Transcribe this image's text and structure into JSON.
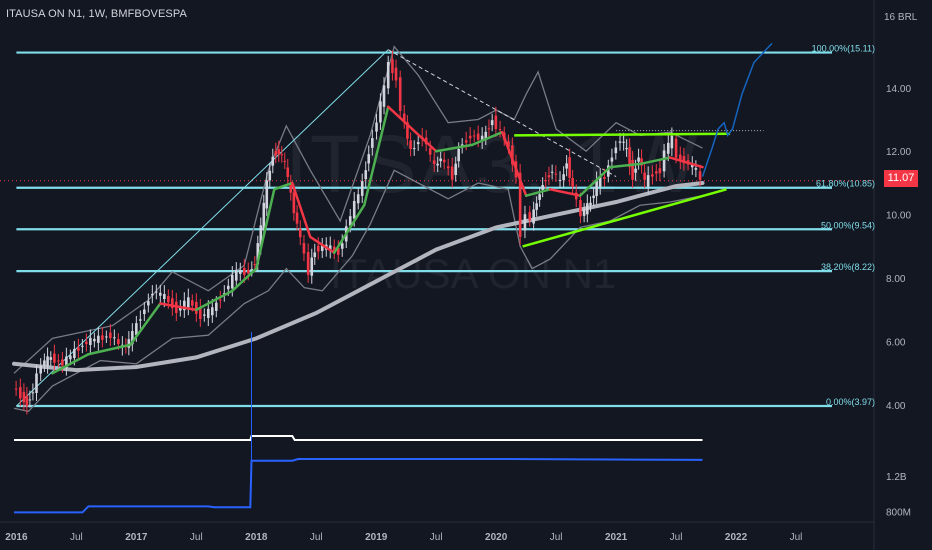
{
  "title": "ITAUSA ON N1, 1W, BMFBOVESPA",
  "watermark": {
    "ticker": "ITSA3, 1W",
    "name": "ITAUSA ON N1"
  },
  "currency": "16 BRL",
  "last_price": "11.07",
  "colors": {
    "background": "#131722",
    "up_candle": "#d1d4dc",
    "down_candle": "#f23645",
    "fib_levels": "#80deea",
    "triangle_lines": "#76ff03",
    "ma_200": "#b2b5be",
    "projection": "#1565c0",
    "last_price": "#f23645"
  },
  "chart_data": {
    "type": "line",
    "x_unit": "year (decimal)",
    "y_unit": "BRL",
    "x_range": [
      2015.98,
      2022.85
    ],
    "y_range": [
      3.15,
      16.2
    ],
    "price_axis_ticks": [
      "16 BRL",
      "14.00",
      "12.00",
      "10.00",
      "8.00",
      "6.00",
      "4.00"
    ],
    "volume_axis_ticks": [
      "1.2B",
      "800M"
    ],
    "time_axis_ticks": [
      {
        "label": "2016",
        "x": 2016.0
      },
      {
        "label": "Jul",
        "x": 2016.5
      },
      {
        "label": "2017",
        "x": 2017.0
      },
      {
        "label": "Jul",
        "x": 2017.5
      },
      {
        "label": "2018",
        "x": 2018.0
      },
      {
        "label": "Jul",
        "x": 2018.5
      },
      {
        "label": "2019",
        "x": 2019.0
      },
      {
        "label": "Jul",
        "x": 2019.5
      },
      {
        "label": "2020",
        "x": 2020.0
      },
      {
        "label": "Jul",
        "x": 2020.5
      },
      {
        "label": "2021",
        "x": 2021.0
      },
      {
        "label": "Jul",
        "x": 2021.5
      },
      {
        "label": "2022",
        "x": 2022.0
      },
      {
        "label": "Jul",
        "x": 2022.5
      }
    ],
    "fib_levels": [
      {
        "label": "100.00%(15.11)",
        "value": 15.11
      },
      {
        "label": "61.80%(10.85)",
        "value": 10.85
      },
      {
        "label": "50.00%(9.54)",
        "value": 9.54
      },
      {
        "label": "38.20%(8.22)",
        "value": 8.22
      },
      {
        "label": "0.00%(3.97)",
        "value": 3.97
      }
    ],
    "fib_x_start": 2016.0,
    "fib_x_end": 2022.8,
    "price_series": [
      [
        2015.98,
        4.6
      ],
      [
        2016.05,
        4.3
      ],
      [
        2016.1,
        4.05
      ],
      [
        2016.15,
        4.5
      ],
      [
        2016.22,
        5.3
      ],
      [
        2016.3,
        5.5
      ],
      [
        2016.4,
        5.3
      ],
      [
        2016.5,
        5.7
      ],
      [
        2016.6,
        6.0
      ],
      [
        2016.7,
        6.1
      ],
      [
        2016.8,
        6.2
      ],
      [
        2016.9,
        5.8
      ],
      [
        2016.95,
        6.0
      ],
      [
        2017.05,
        6.8
      ],
      [
        2017.15,
        7.6
      ],
      [
        2017.25,
        7.4
      ],
      [
        2017.35,
        7.0
      ],
      [
        2017.45,
        7.3
      ],
      [
        2017.55,
        6.8
      ],
      [
        2017.65,
        7.0
      ],
      [
        2017.75,
        7.6
      ],
      [
        2017.85,
        8.2
      ],
      [
        2017.95,
        8.2
      ],
      [
        2018.0,
        8.5
      ],
      [
        2018.05,
        9.6
      ],
      [
        2018.1,
        11.0
      ],
      [
        2018.15,
        11.9
      ],
      [
        2018.2,
        12.0
      ],
      [
        2018.25,
        11.6
      ],
      [
        2018.3,
        10.6
      ],
      [
        2018.38,
        9.2
      ],
      [
        2018.45,
        8.2
      ],
      [
        2018.5,
        8.9
      ],
      [
        2018.6,
        9.0
      ],
      [
        2018.7,
        8.8
      ],
      [
        2018.8,
        10.0
      ],
      [
        2018.9,
        11.0
      ],
      [
        2018.95,
        12.0
      ],
      [
        2019.02,
        13.0
      ],
      [
        2019.08,
        14.0
      ],
      [
        2019.12,
        14.8
      ],
      [
        2019.18,
        14.3
      ],
      [
        2019.22,
        13.3
      ],
      [
        2019.3,
        12.0
      ],
      [
        2019.4,
        12.5
      ],
      [
        2019.5,
        11.5
      ],
      [
        2019.55,
        11.8
      ],
      [
        2019.65,
        11.2
      ],
      [
        2019.7,
        12.1
      ],
      [
        2019.8,
        12.5
      ],
      [
        2019.9,
        12.4
      ],
      [
        2019.98,
        13.0
      ],
      [
        2020.05,
        12.6
      ],
      [
        2020.12,
        12.1
      ],
      [
        2020.18,
        11.2
      ],
      [
        2020.22,
        9.4
      ],
      [
        2020.26,
        10.1
      ],
      [
        2020.3,
        9.8
      ],
      [
        2020.35,
        10.4
      ],
      [
        2020.4,
        11.0
      ],
      [
        2020.48,
        11.4
      ],
      [
        2020.55,
        11.0
      ],
      [
        2020.6,
        11.7
      ],
      [
        2020.65,
        10.8
      ],
      [
        2020.72,
        10.0
      ],
      [
        2020.8,
        10.4
      ],
      [
        2020.85,
        11.0
      ],
      [
        2020.92,
        11.2
      ],
      [
        2020.98,
        11.9
      ],
      [
        2021.05,
        12.4
      ],
      [
        2021.1,
        12.0
      ],
      [
        2021.15,
        11.2
      ],
      [
        2021.2,
        11.9
      ],
      [
        2021.25,
        11.0
      ],
      [
        2021.32,
        11.3
      ],
      [
        2021.38,
        11.4
      ],
      [
        2021.42,
        12.0
      ],
      [
        2021.48,
        12.4
      ],
      [
        2021.52,
        11.8
      ],
      [
        2021.58,
        11.7
      ],
      [
        2021.62,
        11.6
      ],
      [
        2021.68,
        11.4
      ],
      [
        2021.72,
        11.07
      ]
    ],
    "bollinger_upper": [
      [
        2015.98,
        5.0
      ],
      [
        2016.3,
        6.1
      ],
      [
        2016.8,
        6.5
      ],
      [
        2017.1,
        7.3
      ],
      [
        2017.3,
        8.2
      ],
      [
        2017.6,
        7.6
      ],
      [
        2017.9,
        8.4
      ],
      [
        2018.1,
        11.4
      ],
      [
        2018.25,
        12.8
      ],
      [
        2018.45,
        11.4
      ],
      [
        2018.7,
        9.8
      ],
      [
        2018.95,
        12.5
      ],
      [
        2019.15,
        15.3
      ],
      [
        2019.35,
        14.4
      ],
      [
        2019.6,
        12.9
      ],
      [
        2019.85,
        13.0
      ],
      [
        2020.0,
        13.3
      ],
      [
        2020.15,
        13.0
      ],
      [
        2020.25,
        13.8
      ],
      [
        2020.35,
        14.5
      ],
      [
        2020.5,
        12.7
      ],
      [
        2020.75,
        12.0
      ],
      [
        2021.0,
        12.9
      ],
      [
        2021.2,
        12.5
      ],
      [
        2021.45,
        12.6
      ],
      [
        2021.72,
        12.1
      ]
    ],
    "bollinger_lower": [
      [
        2015.98,
        3.9
      ],
      [
        2016.1,
        3.8
      ],
      [
        2016.3,
        4.6
      ],
      [
        2016.7,
        5.4
      ],
      [
        2017.0,
        5.3
      ],
      [
        2017.3,
        6.1
      ],
      [
        2017.6,
        6.2
      ],
      [
        2017.9,
        7.2
      ],
      [
        2018.1,
        7.6
      ],
      [
        2018.25,
        8.3
      ],
      [
        2018.4,
        7.7
      ],
      [
        2018.55,
        7.6
      ],
      [
        2018.8,
        8.7
      ],
      [
        2018.95,
        9.7
      ],
      [
        2019.15,
        11.4
      ],
      [
        2019.35,
        11.0
      ],
      [
        2019.6,
        10.5
      ],
      [
        2019.85,
        11.0
      ],
      [
        2020.1,
        10.8
      ],
      [
        2020.2,
        9.0
      ],
      [
        2020.3,
        8.3
      ],
      [
        2020.45,
        8.6
      ],
      [
        2020.7,
        9.6
      ],
      [
        2020.95,
        9.8
      ],
      [
        2021.2,
        10.3
      ],
      [
        2021.45,
        10.4
      ],
      [
        2021.72,
        10.6
      ]
    ],
    "ema_fast": [
      [
        2016.3,
        5.0
      ],
      [
        2016.6,
        5.6
      ],
      [
        2016.95,
        5.9
      ],
      [
        2017.2,
        7.2
      ],
      [
        2017.5,
        7.0
      ],
      [
        2017.8,
        7.6
      ],
      [
        2018.0,
        8.3
      ],
      [
        2018.15,
        10.8
      ],
      [
        2018.3,
        11.0
      ],
      [
        2018.45,
        9.3
      ],
      [
        2018.65,
        8.8
      ],
      [
        2018.9,
        10.3
      ],
      [
        2019.1,
        13.4
      ],
      [
        2019.3,
        12.7
      ],
      [
        2019.5,
        12.0
      ],
      [
        2019.8,
        12.2
      ],
      [
        2020.05,
        12.6
      ],
      [
        2020.25,
        10.6
      ],
      [
        2020.45,
        10.8
      ],
      [
        2020.7,
        10.6
      ],
      [
        2020.95,
        11.5
      ],
      [
        2021.2,
        11.6
      ],
      [
        2021.45,
        11.8
      ],
      [
        2021.72,
        11.5
      ]
    ],
    "ma_200": [
      [
        2015.98,
        5.3
      ],
      [
        2016.5,
        5.1
      ],
      [
        2017.0,
        5.2
      ],
      [
        2017.5,
        5.5
      ],
      [
        2018.0,
        6.1
      ],
      [
        2018.5,
        6.9
      ],
      [
        2019.0,
        7.9
      ],
      [
        2019.5,
        8.9
      ],
      [
        2020.0,
        9.6
      ],
      [
        2020.5,
        10.0
      ],
      [
        2021.0,
        10.4
      ],
      [
        2021.5,
        10.9
      ],
      [
        2021.72,
        11.0
      ]
    ],
    "projection": [
      [
        2021.72,
        11.2
      ],
      [
        2021.8,
        12.1
      ],
      [
        2021.85,
        12.7
      ],
      [
        2021.9,
        12.9
      ],
      [
        2021.93,
        12.5
      ],
      [
        2021.97,
        12.7
      ],
      [
        2022.05,
        13.8
      ],
      [
        2022.15,
        14.8
      ],
      [
        2022.3,
        15.4
      ]
    ],
    "triangle_upper": [
      [
        2020.15,
        12.5
      ],
      [
        2021.95,
        12.55
      ]
    ],
    "triangle_lower": [
      [
        2020.22,
        9.0
      ],
      [
        2021.92,
        10.8
      ]
    ],
    "resistance_dotted": [
      [
        2021.0,
        12.65
      ],
      [
        2022.23,
        12.65
      ]
    ],
    "trend_up_thin": [
      [
        2016.0,
        3.97
      ],
      [
        2019.1,
        15.2
      ]
    ],
    "trend_down_dashed": [
      [
        2019.1,
        15.2
      ],
      [
        2021.0,
        11.2
      ]
    ],
    "volume_series": [
      [
        2015.98,
        790
      ],
      [
        2016.55,
        790
      ],
      [
        2016.6,
        860
      ],
      [
        2017.6,
        860
      ],
      [
        2017.65,
        850
      ],
      [
        2017.95,
        850
      ],
      [
        2017.96,
        1400
      ],
      [
        2018.3,
        1400
      ],
      [
        2018.35,
        1420
      ],
      [
        2020.0,
        1420
      ],
      [
        2021.72,
        1410
      ]
    ],
    "volume_range": [
      700,
      1550
    ],
    "oscillator_series": [
      [
        2015.98,
        0.5
      ],
      [
        2017.95,
        0.5
      ],
      [
        2017.96,
        0.75
      ],
      [
        2018.3,
        0.75
      ],
      [
        2018.32,
        0.5
      ],
      [
        2021.72,
        0.5
      ]
    ],
    "volume_spike": [
      2017.96,
      2.5
    ]
  }
}
